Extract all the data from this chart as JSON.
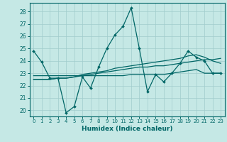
{
  "title": "",
  "xlabel": "Humidex (Indice chaleur)",
  "xlim": [
    -0.5,
    23.5
  ],
  "ylim": [
    19.5,
    28.7
  ],
  "yticks": [
    20,
    21,
    22,
    23,
    24,
    25,
    26,
    27,
    28
  ],
  "xticks": [
    0,
    1,
    2,
    3,
    4,
    5,
    6,
    7,
    8,
    9,
    10,
    11,
    12,
    13,
    14,
    15,
    16,
    17,
    18,
    19,
    20,
    21,
    22,
    23
  ],
  "bg_color": "#c5e8e5",
  "grid_color": "#a0cccc",
  "line_color": "#006666",
  "series": [
    [
      24.8,
      23.9,
      22.6,
      22.6,
      19.8,
      20.3,
      22.7,
      21.8,
      23.5,
      25.0,
      26.1,
      26.8,
      28.3,
      25.0,
      21.5,
      22.9,
      22.3,
      23.0,
      23.8,
      24.8,
      24.3,
      24.0,
      23.0,
      23.0
    ],
    [
      22.8,
      22.8,
      22.8,
      22.8,
      22.8,
      22.8,
      22.8,
      22.8,
      22.8,
      22.8,
      22.8,
      22.8,
      22.9,
      22.9,
      22.9,
      22.9,
      22.9,
      23.0,
      23.1,
      23.2,
      23.3,
      23.0,
      23.0,
      23.0
    ],
    [
      22.5,
      22.5,
      22.5,
      22.6,
      22.6,
      22.7,
      22.8,
      22.9,
      23.0,
      23.1,
      23.2,
      23.3,
      23.4,
      23.5,
      23.5,
      23.6,
      23.6,
      23.7,
      23.8,
      23.9,
      24.0,
      24.1,
      24.1,
      24.2
    ],
    [
      22.5,
      22.5,
      22.5,
      22.6,
      22.6,
      22.7,
      22.9,
      23.0,
      23.1,
      23.2,
      23.4,
      23.5,
      23.6,
      23.7,
      23.8,
      23.9,
      24.0,
      24.1,
      24.2,
      24.4,
      24.5,
      24.3,
      24.0,
      23.8
    ]
  ]
}
